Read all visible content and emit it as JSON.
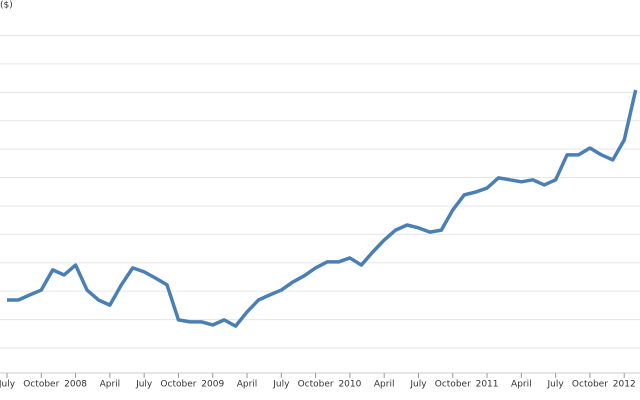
{
  "chart_data": {
    "type": "line",
    "y_label": "($)",
    "x": [
      "2007-07",
      "2007-08",
      "2007-09",
      "2007-10",
      "2007-11",
      "2007-12",
      "2008-01",
      "2008-02",
      "2008-03",
      "2008-04",
      "2008-05",
      "2008-06",
      "2008-07",
      "2008-08",
      "2008-09",
      "2008-10",
      "2008-11",
      "2008-12",
      "2009-01",
      "2009-02",
      "2009-03",
      "2009-04",
      "2009-05",
      "2009-06",
      "2009-07",
      "2009-08",
      "2009-09",
      "2009-10",
      "2009-11",
      "2009-12",
      "2010-01",
      "2010-02",
      "2010-03",
      "2010-04",
      "2010-05",
      "2010-06",
      "2010-07",
      "2010-08",
      "2010-09",
      "2010-10",
      "2010-11",
      "2010-12",
      "2011-01",
      "2011-02",
      "2011-03",
      "2011-04",
      "2011-05",
      "2011-06",
      "2011-07",
      "2011-08",
      "2011-09",
      "2011-10",
      "2011-11",
      "2011-12",
      "2012-01",
      "2012-02"
    ],
    "series": [
      {
        "color": "#4a7fb5",
        "values": [
          2.69,
          2.69,
          2.87,
          3.04,
          3.75,
          3.57,
          3.92,
          3.04,
          2.69,
          2.51,
          3.22,
          3.82,
          3.68,
          3.46,
          3.22,
          1.99,
          1.92,
          1.92,
          1.81,
          1.99,
          1.77,
          2.27,
          2.69,
          2.87,
          3.04,
          3.32,
          3.54,
          3.82,
          4.03,
          4.03,
          4.17,
          3.92,
          4.38,
          4.8,
          5.15,
          5.33,
          5.23,
          5.08,
          5.15,
          5.86,
          6.39,
          6.49,
          6.63,
          6.99,
          6.92,
          6.85,
          6.92,
          6.74,
          6.92,
          7.8,
          7.8,
          8.04,
          7.8,
          7.62,
          8.32,
          10.08
        ]
      }
    ],
    "xticks": [
      {
        "value": "2007-07",
        "label": "July"
      },
      {
        "value": "2007-10",
        "label": "October"
      },
      {
        "value": "2008-01",
        "label": "2008"
      },
      {
        "value": "2008-04",
        "label": "April"
      },
      {
        "value": "2008-07",
        "label": "July"
      },
      {
        "value": "2008-10",
        "label": "October"
      },
      {
        "value": "2009-01",
        "label": "2009"
      },
      {
        "value": "2009-04",
        "label": "April"
      },
      {
        "value": "2009-07",
        "label": "July"
      },
      {
        "value": "2009-10",
        "label": "October"
      },
      {
        "value": "2010-01",
        "label": "2010"
      },
      {
        "value": "2010-04",
        "label": "April"
      },
      {
        "value": "2010-07",
        "label": "July"
      },
      {
        "value": "2010-10",
        "label": "October"
      },
      {
        "value": "2011-01",
        "label": "2011"
      },
      {
        "value": "2011-04",
        "label": "April"
      },
      {
        "value": "2011-07",
        "label": "July"
      },
      {
        "value": "2011-10",
        "label": "October"
      },
      {
        "value": "2012-01",
        "label": "2012"
      }
    ],
    "ylim": [
      0.12,
      13.25
    ],
    "yticks": [
      1,
      2,
      3,
      4,
      5,
      6,
      7,
      8,
      9,
      10,
      11,
      12
    ],
    "grid": true
  }
}
